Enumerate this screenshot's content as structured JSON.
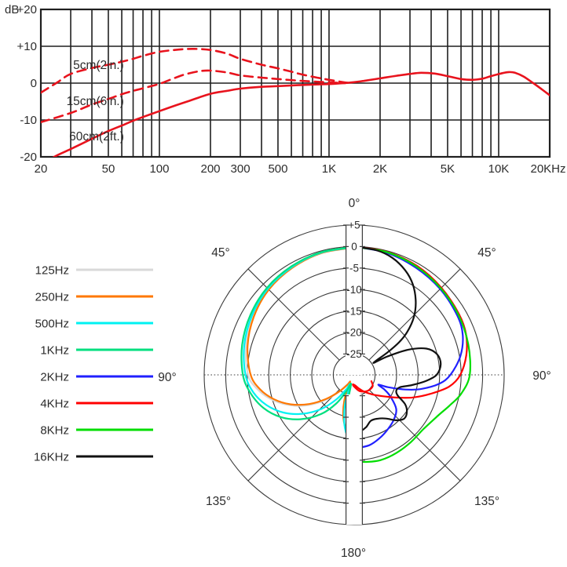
{
  "frequency_response": {
    "type": "line",
    "unit_label": "dB",
    "curve_color": "#e8131d",
    "grid_color": "#1f1f1f",
    "y_axis": {
      "range_db": [
        -20,
        20
      ],
      "ticks": [
        {
          "db": 20,
          "label": "+20"
        },
        {
          "db": 10,
          "label": "+10"
        },
        {
          "db": 0,
          "label": "0"
        },
        {
          "db": -10,
          "label": "-10"
        },
        {
          "db": -20,
          "label": "-20"
        }
      ],
      "gridlines_db": [
        10,
        0,
        -10
      ]
    },
    "x_axis": {
      "range_hz": [
        20,
        20000
      ],
      "scale": "log",
      "ticks": [
        {
          "hz": 20,
          "label": "20"
        },
        {
          "hz": 50,
          "label": "50"
        },
        {
          "hz": 100,
          "label": "100"
        },
        {
          "hz": 200,
          "label": "200"
        },
        {
          "hz": 300,
          "label": "300"
        },
        {
          "hz": 500,
          "label": "500"
        },
        {
          "hz": 1000,
          "label": "1K"
        },
        {
          "hz": 2000,
          "label": "2K"
        },
        {
          "hz": 5000,
          "label": "5K"
        },
        {
          "hz": 10000,
          "label": "10K"
        },
        {
          "hz": 20000,
          "label": "20KHz"
        }
      ],
      "gridlines_hz": [
        30,
        40,
        50,
        60,
        70,
        80,
        90,
        100,
        200,
        300,
        400,
        500,
        600,
        700,
        800,
        900,
        1000,
        2000,
        3000,
        4000,
        5000,
        6000,
        7000,
        8000,
        9000,
        10000
      ]
    },
    "series": [
      {
        "name": "5cm(2in.)",
        "style": "dashed",
        "label_anchor": {
          "hz": 31,
          "db": 3.8
        },
        "points": [
          [
            20,
            -2.6
          ],
          [
            25,
            0.2
          ],
          [
            30,
            2.5
          ],
          [
            40,
            4.1
          ],
          [
            50,
            5
          ],
          [
            60,
            5.8
          ],
          [
            70,
            6.6
          ],
          [
            80,
            7.4
          ],
          [
            100,
            8.5
          ],
          [
            130,
            9.1
          ],
          [
            160,
            9.3
          ],
          [
            200,
            9
          ],
          [
            250,
            8
          ],
          [
            300,
            6.6
          ],
          [
            400,
            5
          ],
          [
            500,
            4
          ],
          [
            600,
            3.1
          ],
          [
            700,
            2.3
          ],
          [
            850,
            1.5
          ],
          [
            1000,
            0.9
          ],
          [
            1200,
            0.3
          ],
          [
            1350,
            0
          ]
        ]
      },
      {
        "name": "15cm(6in.)",
        "style": "dashed",
        "label_anchor": {
          "hz": 28.3,
          "db": -6
        },
        "points": [
          [
            20,
            -10.6
          ],
          [
            30,
            -8.1
          ],
          [
            40,
            -5.8
          ],
          [
            50,
            -4.3
          ],
          [
            60,
            -3
          ],
          [
            70,
            -2.1
          ],
          [
            80,
            -1.4
          ],
          [
            100,
            -0.2
          ],
          [
            120,
            1.2
          ],
          [
            140,
            2.3
          ],
          [
            170,
            3.2
          ],
          [
            200,
            3.4
          ],
          [
            250,
            2.9
          ],
          [
            300,
            2.1
          ],
          [
            400,
            1.5
          ],
          [
            500,
            1.1
          ],
          [
            700,
            0.6
          ],
          [
            1000,
            0.2
          ],
          [
            1250,
            0
          ]
        ]
      },
      {
        "name": "60cm(2ft.)",
        "style": "solid",
        "label_anchor": {
          "hz": 29.4,
          "db": -15.5
        },
        "points": [
          [
            20,
            -22.5
          ],
          [
            24,
            -20
          ],
          [
            30,
            -17.9
          ],
          [
            40,
            -15.1
          ],
          [
            50,
            -13
          ],
          [
            60,
            -11.5
          ],
          [
            70,
            -10.2
          ],
          [
            80,
            -9.2
          ],
          [
            100,
            -7.6
          ],
          [
            120,
            -6.3
          ],
          [
            150,
            -4.8
          ],
          [
            200,
            -2.9
          ],
          [
            250,
            -2.1
          ],
          [
            300,
            -1.5
          ],
          [
            400,
            -1
          ],
          [
            500,
            -0.8
          ],
          [
            700,
            -0.5
          ],
          [
            1000,
            -0.25
          ],
          [
            1300,
            0.1
          ],
          [
            1600,
            0.6
          ],
          [
            2000,
            1.3
          ],
          [
            2500,
            2
          ],
          [
            3000,
            2.5
          ],
          [
            3500,
            2.8
          ],
          [
            4200,
            2.6
          ],
          [
            5000,
            1.9
          ],
          [
            6000,
            1.1
          ],
          [
            7000,
            0.9
          ],
          [
            8000,
            1.2
          ],
          [
            9000,
            1.9
          ],
          [
            10500,
            2.7
          ],
          [
            11500,
            3
          ],
          [
            12500,
            2.8
          ],
          [
            14000,
            1.8
          ],
          [
            16000,
            0
          ],
          [
            18000,
            -1.7
          ],
          [
            20000,
            -3.3
          ]
        ]
      }
    ]
  },
  "polar": {
    "type": "polar",
    "grid_color": "#3c3c3c",
    "radial_axis": {
      "labels": [
        "+5",
        "0",
        "-5",
        "-10",
        "-15",
        "-20",
        "-25"
      ],
      "rings_db": [
        5,
        0,
        -5,
        -10,
        -15,
        -20,
        -25
      ],
      "db_per_ring": 5
    },
    "angle_labels": [
      {
        "text": "0°",
        "pos": "top"
      },
      {
        "text": "45°",
        "pos": "upper_left"
      },
      {
        "text": "45°",
        "pos": "upper_right"
      },
      {
        "text": "90°",
        "pos": "left"
      },
      {
        "text": "90°",
        "pos": "right"
      },
      {
        "text": "135°",
        "pos": "lower_left"
      },
      {
        "text": "135°",
        "pos": "lower_right"
      },
      {
        "text": "180°",
        "pos": "bottom"
      }
    ],
    "series": [
      {
        "name": "125Hz",
        "color": "#d9d9d9",
        "side": "left",
        "points": [
          [
            0,
            -0.25
          ],
          [
            15,
            -0.55
          ],
          [
            30,
            -1
          ],
          [
            45,
            -1.65
          ],
          [
            60,
            -2.6
          ],
          [
            75,
            -3.8
          ],
          [
            90,
            -5.2
          ],
          [
            98,
            -7
          ],
          [
            106,
            -9.6
          ],
          [
            114,
            -12.8
          ],
          [
            122,
            -16.4
          ],
          [
            130,
            -20.4
          ],
          [
            137,
            -24
          ],
          [
            144,
            -27
          ],
          [
            150,
            -28
          ],
          [
            158,
            -24
          ],
          [
            166,
            -20.8
          ],
          [
            173,
            -18.6
          ],
          [
            180,
            -17.2
          ]
        ]
      },
      {
        "name": "250Hz",
        "color": "#ff7800",
        "side": "left",
        "points": [
          [
            0,
            -0.2
          ],
          [
            15,
            -0.5
          ],
          [
            30,
            -1.1
          ],
          [
            45,
            -1.8
          ],
          [
            60,
            -2.9
          ],
          [
            75,
            -4.2
          ],
          [
            90,
            -5.8
          ],
          [
            99,
            -7.8
          ],
          [
            107,
            -10.4
          ],
          [
            115,
            -13.6
          ],
          [
            123,
            -17.4
          ],
          [
            131,
            -21.4
          ],
          [
            139,
            -25
          ],
          [
            146,
            -27.2
          ],
          [
            152,
            -27.8
          ],
          [
            159,
            -23.5
          ],
          [
            166,
            -19.5
          ],
          [
            173,
            -16.6
          ],
          [
            180,
            -15.2
          ]
        ]
      },
      {
        "name": "500Hz",
        "color": "#00f2f2",
        "side": "left",
        "points": [
          [
            0,
            -0.15
          ],
          [
            15,
            -0.4
          ],
          [
            30,
            -0.9
          ],
          [
            45,
            -1.5
          ],
          [
            60,
            -2.4
          ],
          [
            75,
            -3.4
          ],
          [
            90,
            -4.6
          ],
          [
            100,
            -6.1
          ],
          [
            109,
            -8.3
          ],
          [
            118,
            -11.2
          ],
          [
            127,
            -14.8
          ],
          [
            136,
            -18.8
          ],
          [
            144,
            -22.8
          ],
          [
            151,
            -26
          ],
          [
            157,
            -27.4
          ],
          [
            163,
            -22.5
          ],
          [
            169,
            -18
          ],
          [
            175,
            -14.8
          ],
          [
            180,
            -13.2
          ]
        ]
      },
      {
        "name": "1KHz",
        "color": "#00df7f",
        "side": "left",
        "points": [
          [
            0,
            -0.1
          ],
          [
            15,
            -0.3
          ],
          [
            30,
            -0.7
          ],
          [
            45,
            -1.2
          ],
          [
            60,
            -2
          ],
          [
            75,
            -2.9
          ],
          [
            90,
            -4
          ],
          [
            100,
            -5.4
          ],
          [
            110,
            -7.4
          ],
          [
            120,
            -10.2
          ],
          [
            130,
            -13.8
          ],
          [
            140,
            -18
          ],
          [
            148,
            -22
          ],
          [
            155,
            -25.8
          ],
          [
            161,
            -27.6
          ],
          [
            167,
            -23
          ],
          [
            172,
            -18
          ],
          [
            176,
            -14.5
          ],
          [
            180,
            -11.8
          ]
        ]
      },
      {
        "name": "2KHz",
        "color": "#2020ff",
        "side": "right",
        "points": [
          [
            0,
            -0.05
          ],
          [
            15,
            -0.45
          ],
          [
            30,
            -1.1
          ],
          [
            45,
            -1.6
          ],
          [
            60,
            -2.2
          ],
          [
            70,
            -3
          ],
          [
            80,
            -4.8
          ],
          [
            90,
            -7.5
          ],
          [
            96,
            -10
          ],
          [
            102,
            -14
          ],
          [
            106,
            -17.5
          ],
          [
            110,
            -21.5
          ],
          [
            112,
            -23.8
          ],
          [
            116,
            -22
          ],
          [
            121,
            -20
          ],
          [
            129,
            -17.3
          ],
          [
            138,
            -16
          ],
          [
            148,
            -15
          ],
          [
            158,
            -14
          ],
          [
            168,
            -13.1
          ],
          [
            180,
            -12.7
          ]
        ]
      },
      {
        "name": "4KHz",
        "color": "#ff0000",
        "side": "right",
        "points": [
          [
            0,
            0
          ],
          [
            15,
            -0.25
          ],
          [
            30,
            -0.6
          ],
          [
            45,
            -1.2
          ],
          [
            60,
            -1.7
          ],
          [
            70,
            -2.2
          ],
          [
            80,
            -3.4
          ],
          [
            90,
            -5.2
          ],
          [
            97,
            -7.6
          ],
          [
            104,
            -11.6
          ],
          [
            111,
            -15.2
          ],
          [
            118,
            -18.6
          ],
          [
            127,
            -21.6
          ],
          [
            138,
            -23.8
          ],
          [
            150,
            -25.4
          ],
          [
            162,
            -26.6
          ],
          [
            175,
            -27.4
          ],
          [
            188,
            -27.6
          ],
          [
            176,
            -26.9
          ],
          [
            160,
            -25.8
          ],
          [
            140,
            -25
          ],
          [
            122,
            -24.8
          ],
          [
            110,
            -25.6
          ]
        ]
      },
      {
        "name": "8KHz",
        "color": "#00dd00",
        "side": "right",
        "points": [
          [
            0,
            -0.1
          ],
          [
            15,
            -0.3
          ],
          [
            30,
            -0.8
          ],
          [
            45,
            -1.4
          ],
          [
            60,
            -1.9
          ],
          [
            75,
            -2.4
          ],
          [
            90,
            -3
          ],
          [
            100,
            -4.6
          ],
          [
            108,
            -6.6
          ],
          [
            116,
            -8.2
          ],
          [
            128,
            -9.4
          ],
          [
            140,
            -9.4
          ],
          [
            152,
            -9.2
          ],
          [
            163,
            -9.1
          ],
          [
            172,
            -9.4
          ],
          [
            180,
            -9.7
          ]
        ]
      },
      {
        "name": "16KHz",
        "color": "#111111",
        "side": "right",
        "points": [
          [
            0,
            0
          ],
          [
            10,
            -0.4
          ],
          [
            18,
            -1.2
          ],
          [
            26,
            -2.8
          ],
          [
            33,
            -4.8
          ],
          [
            40,
            -7.6
          ],
          [
            46,
            -10.6
          ],
          [
            51,
            -14
          ],
          [
            54,
            -17
          ],
          [
            56,
            -20.5
          ],
          [
            58,
            -24.6
          ],
          [
            61,
            -21
          ],
          [
            65,
            -16
          ],
          [
            70,
            -12
          ],
          [
            76,
            -10
          ],
          [
            83,
            -9.6
          ],
          [
            90,
            -10.7
          ],
          [
            95,
            -13.2
          ],
          [
            100,
            -16.2
          ],
          [
            105,
            -18.8
          ],
          [
            110,
            -19.4
          ],
          [
            115,
            -18.8
          ],
          [
            120,
            -16.2
          ],
          [
            125,
            -14.9
          ],
          [
            131,
            -14.4
          ],
          [
            137,
            -15.4
          ],
          [
            144,
            -17.3
          ],
          [
            152,
            -18.3
          ],
          [
            160,
            -18.5
          ],
          [
            167,
            -17.4
          ],
          [
            174,
            -16.6
          ],
          [
            180,
            -16.2
          ]
        ]
      }
    ]
  },
  "legend": {
    "items": [
      {
        "label": "125Hz",
        "color": "#d9d9d9"
      },
      {
        "label": "250Hz",
        "color": "#ff7800"
      },
      {
        "label": "500Hz",
        "color": "#00f2f2"
      },
      {
        "label": "1KHz",
        "color": "#00df7f"
      },
      {
        "label": "2KHz",
        "color": "#2020ff"
      },
      {
        "label": "4KHz",
        "color": "#ff0000"
      },
      {
        "label": "8KHz",
        "color": "#00dd00"
      },
      {
        "label": "16KHz",
        "color": "#111111"
      }
    ]
  }
}
